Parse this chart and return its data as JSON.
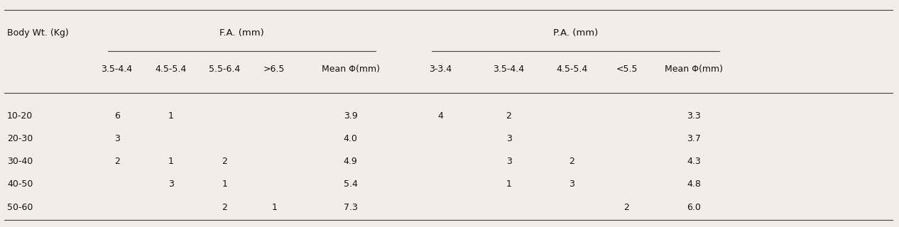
{
  "col_header_row2": [
    "Body Wt. (Kg)",
    "3.5-4.4",
    "4.5-5.4",
    "5.5-6.4",
    ">6.5",
    "Mean Φ(mm)",
    "3-3.4",
    "3.5-4.4",
    "4.5-5.4",
    "<5.5",
    "Mean Φ(mm)"
  ],
  "rows": [
    [
      "10-20",
      "6",
      "1",
      "",
      "",
      "3.9",
      "4",
      "2",
      "",
      "",
      "3.3"
    ],
    [
      "20-30",
      "3",
      "",
      "",
      "",
      "4.0",
      "",
      "3",
      "",
      "",
      "3.7"
    ],
    [
      "30-40",
      "2",
      "1",
      "2",
      "",
      "4.9",
      "",
      "3",
      "2",
      "",
      "4.3"
    ],
    [
      "40-50",
      "",
      "3",
      "1",
      "",
      "5.4",
      "",
      "1",
      "3",
      "",
      "4.8"
    ],
    [
      "50-60",
      "",
      "",
      "2",
      "1",
      "7.3",
      "",
      "",
      "",
      "2",
      "6.0"
    ]
  ],
  "fa_label": "F.A. (mm)",
  "pa_label": "P.A. (mm)",
  "background_color": "#f2ede8",
  "line_color": "#444444",
  "text_color": "#111111",
  "font_size": 9.0,
  "header_font_size": 9.5
}
